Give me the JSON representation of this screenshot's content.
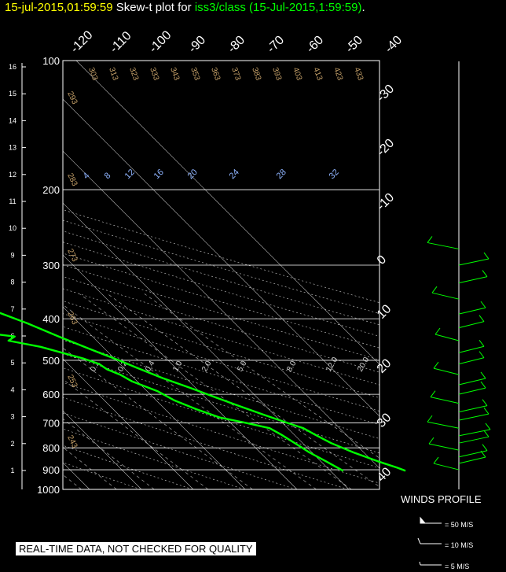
{
  "header": {
    "timestamp": "15-jul-2015,01:59:59",
    "plot_prefix": "Skew-t plot for ",
    "station_text": "iss3/class (15-Jul-2015,1:59:59)",
    "suffix": "."
  },
  "winds": {
    "title": "WINDS PROFILE",
    "legend": [
      "= 50 M/S",
      "= 10 M/S",
      "= 5 M/S"
    ]
  },
  "footer": {
    "warning": "REAL-TIME DATA, NOT CHECKED FOR QUALITY"
  },
  "colors": {
    "background": "#000000",
    "sounding": "#00ff00",
    "grid": "#ffffff",
    "dry_adiabat": "#c8a36a",
    "mixing_ratio": "#8fb4ff",
    "title_time": "#ffff00"
  },
  "chart_data": {
    "type": "line",
    "title": "Skew-t plot",
    "pressure_axis": {
      "labels": [
        "100",
        "200",
        "300",
        "400",
        "500",
        "600",
        "700",
        "800",
        "900",
        "1000"
      ],
      "values": [
        100,
        200,
        300,
        400,
        500,
        600,
        700,
        800,
        900,
        1000
      ]
    },
    "height_axis": {
      "labels": [
        "16",
        "15",
        "14",
        "13",
        "12",
        "11",
        "10",
        "9",
        "8",
        "7",
        "6",
        "5",
        "4",
        "3",
        "2",
        "1"
      ],
      "values": [
        16,
        15,
        14,
        13,
        12,
        11,
        10,
        9,
        8,
        7,
        6,
        5,
        4,
        3,
        2,
        1
      ]
    },
    "temperature_top_labels": [
      "-120",
      "-110",
      "-100",
      "-90",
      "-80",
      "-70",
      "-60",
      "-50",
      "-40"
    ],
    "temperature_top_values": [
      -120,
      -110,
      -100,
      -90,
      -80,
      -70,
      -60,
      -50,
      -40
    ],
    "temperature_right_labels": [
      "-30",
      "-20",
      "-10",
      "0",
      "10",
      "20",
      "30",
      "40"
    ],
    "temperature_right_values": [
      -30,
      -20,
      -10,
      0,
      10,
      20,
      30,
      40
    ],
    "dry_adiabat_labels": [
      "303",
      "313",
      "323",
      "333",
      "343",
      "353",
      "363",
      "373",
      "383",
      "393",
      "403",
      "413",
      "423",
      "433",
      "293",
      "283",
      "273",
      "263",
      "253",
      "243"
    ],
    "mixing_ratio_labels": [
      "4",
      "8",
      "12",
      "16",
      "20",
      "24",
      "28",
      "32"
    ],
    "mixing_ratio_lower_labels": [
      "0.1",
      "0.2",
      "0.4",
      "1.0",
      "2.0",
      "5.0",
      "8.0",
      "12.0",
      "20.0"
    ],
    "series": [
      {
        "kind": "temperature",
        "points": [
          {
            "p": 905,
            "t": 24.5
          },
          {
            "p": 890,
            "t": 23.5
          },
          {
            "p": 860,
            "t": 21.0
          },
          {
            "p": 820,
            "t": 18.0
          },
          {
            "p": 780,
            "t": 15.5
          },
          {
            "p": 745,
            "t": 14.0
          },
          {
            "p": 720,
            "t": 13.0
          },
          {
            "p": 700,
            "t": 11.0
          },
          {
            "p": 670,
            "t": 8.0
          },
          {
            "p": 640,
            "t": 5.0
          },
          {
            "p": 610,
            "t": 2.0
          },
          {
            "p": 580,
            "t": -1.0
          },
          {
            "p": 550,
            "t": -4.5
          },
          {
            "p": 520,
            "t": -7.5
          },
          {
            "p": 500,
            "t": -9.5
          },
          {
            "p": 470,
            "t": -13.0
          },
          {
            "p": 440,
            "t": -16.5
          },
          {
            "p": 410,
            "t": -20.0
          },
          {
            "p": 380,
            "t": -24.5
          },
          {
            "p": 350,
            "t": -29.0
          },
          {
            "p": 320,
            "t": -34.5
          },
          {
            "p": 300,
            "t": -38.5
          },
          {
            "p": 275,
            "t": -43.0
          },
          {
            "p": 255,
            "t": -47.0
          }
        ]
      },
      {
        "kind": "dewpoint",
        "points": [
          {
            "p": 905,
            "t": 12.5
          },
          {
            "p": 890,
            "t": 12.0
          },
          {
            "p": 860,
            "t": 11.0
          },
          {
            "p": 820,
            "t": 9.5
          },
          {
            "p": 780,
            "t": 8.5
          },
          {
            "p": 745,
            "t": 7.5
          },
          {
            "p": 720,
            "t": 6.5
          },
          {
            "p": 700,
            "t": 3.0
          },
          {
            "p": 680,
            "t": -1.0
          },
          {
            "p": 650,
            "t": -4.0
          },
          {
            "p": 620,
            "t": -6.5
          },
          {
            "p": 590,
            "t": -8.0
          },
          {
            "p": 560,
            "t": -11.0
          },
          {
            "p": 540,
            "t": -12.0
          },
          {
            "p": 525,
            "t": -13.5
          },
          {
            "p": 510,
            "t": -14.0
          },
          {
            "p": 495,
            "t": -16.0
          },
          {
            "p": 480,
            "t": -19.0
          },
          {
            "p": 465,
            "t": -22.0
          },
          {
            "p": 450,
            "t": -27.0
          },
          {
            "p": 440,
            "t": -25.0
          },
          {
            "p": 430,
            "t": -31.0
          },
          {
            "p": 420,
            "t": -29.0
          },
          {
            "p": 410,
            "t": -34.0
          },
          {
            "p": 400,
            "t": -36.0
          },
          {
            "p": 390,
            "t": -33.0
          },
          {
            "p": 380,
            "t": -34.0
          },
          {
            "p": 370,
            "t": -31.0
          },
          {
            "p": 355,
            "t": -32.0
          },
          {
            "p": 340,
            "t": -33.5
          },
          {
            "p": 320,
            "t": -36.0
          },
          {
            "p": 300,
            "t": -39.5
          },
          {
            "p": 275,
            "t": -45.0
          },
          {
            "p": 255,
            "t": -49.0
          }
        ]
      }
    ],
    "wind_profile": {
      "units": "M/S",
      "barbs": [
        {
          "p": 900,
          "speed": 5
        },
        {
          "p": 870,
          "speed": 6
        },
        {
          "p": 840,
          "speed": 7
        },
        {
          "p": 810,
          "speed": 8
        },
        {
          "p": 780,
          "speed": 8
        },
        {
          "p": 750,
          "speed": 9
        },
        {
          "p": 720,
          "speed": 9
        },
        {
          "p": 690,
          "speed": 8
        },
        {
          "p": 660,
          "speed": 7
        },
        {
          "p": 630,
          "speed": 7
        },
        {
          "p": 600,
          "speed": 6
        },
        {
          "p": 570,
          "speed": 6
        },
        {
          "p": 540,
          "speed": 5
        },
        {
          "p": 510,
          "speed": 5
        },
        {
          "p": 480,
          "speed": 5
        },
        {
          "p": 450,
          "speed": 4
        },
        {
          "p": 420,
          "speed": 5
        },
        {
          "p": 390,
          "speed": 6
        },
        {
          "p": 360,
          "speed": 6
        },
        {
          "p": 330,
          "speed": 7
        },
        {
          "p": 300,
          "speed": 8
        },
        {
          "p": 275,
          "speed": 9
        }
      ]
    }
  }
}
